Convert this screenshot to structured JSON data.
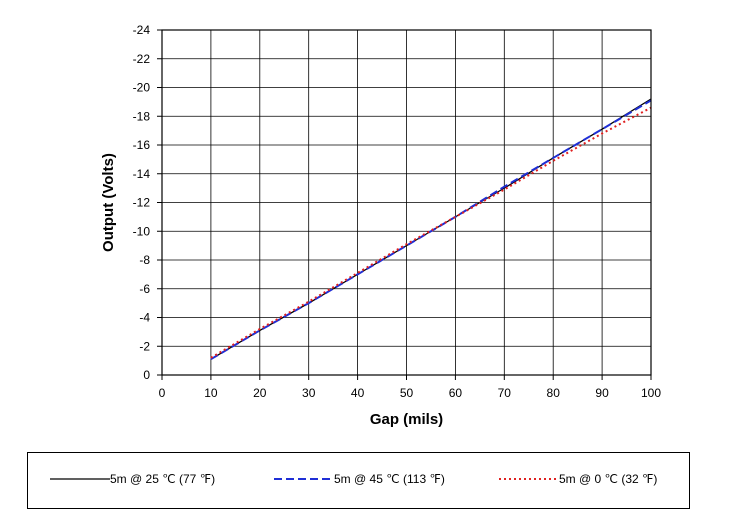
{
  "chart_data": {
    "type": "line",
    "xlabel": "Gap (mils)",
    "ylabel": "Output (Volts)",
    "xlim": [
      0,
      100
    ],
    "ylim": [
      0,
      -24
    ],
    "xticks": [
      "0",
      "10",
      "20",
      "30",
      "40",
      "50",
      "60",
      "70",
      "80",
      "90",
      "100"
    ],
    "yticks": [
      "0",
      "-2",
      "-4",
      "-6",
      "-8",
      "-10",
      "-12",
      "-14",
      "-16",
      "-18",
      "-20",
      "-22",
      "-24"
    ],
    "grid": true,
    "legend_position": "bottom",
    "series": [
      {
        "name": "5m @ 25 ℃ (77 ℉)",
        "color": "#000000",
        "dash": "solid",
        "x": [
          10,
          20,
          30,
          40,
          50,
          60,
          70,
          80,
          90,
          100
        ],
        "y": [
          -1.1,
          -3.1,
          -5.0,
          -7.0,
          -9.0,
          -11.0,
          -13.0,
          -15.1,
          -17.1,
          -19.2
        ]
      },
      {
        "name": "5m @ 45 ℃ (113 ℉)",
        "color": "#1f2fd6",
        "dash": "dashed",
        "x": [
          10,
          20,
          30,
          40,
          50,
          60,
          70,
          80,
          90,
          100
        ],
        "y": [
          -1.1,
          -3.1,
          -5.0,
          -7.0,
          -9.0,
          -11.0,
          -13.1,
          -15.1,
          -17.1,
          -19.1
        ]
      },
      {
        "name": "5m @ 0 ℃ (32 ℉)",
        "color": "#e02020",
        "dash": "dotted",
        "x": [
          10,
          20,
          30,
          40,
          50,
          60,
          70,
          80,
          90,
          100
        ],
        "y": [
          -1.2,
          -3.2,
          -5.1,
          -7.1,
          -9.1,
          -11.0,
          -12.9,
          -14.9,
          -16.8,
          -18.6
        ]
      }
    ]
  }
}
